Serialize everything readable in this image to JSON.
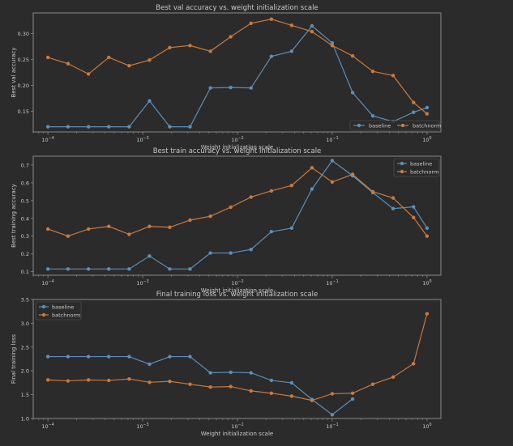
{
  "figure": {
    "background": "#2b2b2b",
    "text_color": "#c8c8c8",
    "axis_color": "#8a8a8a"
  },
  "chart_data": [
    {
      "type": "line",
      "title": "Best val accuracy vs. weight initialization scale",
      "xlabel": "Weight initialization scale",
      "ylabel": "Best val accuracy",
      "xscale": "log",
      "xlim": [
        7e-05,
        1.4
      ],
      "ylim": [
        0.11,
        0.34
      ],
      "yticks": [
        0.15,
        0.2,
        0.25,
        0.3
      ],
      "ytick_labels": [
        "0.15",
        "0.20",
        "0.25",
        "0.30"
      ],
      "xticks": [
        0.0001,
        0.001,
        0.01,
        0.1,
        1
      ],
      "xtick_labels": [
        [
          "10",
          "−4"
        ],
        [
          "10",
          "−3"
        ],
        [
          "10",
          "−2"
        ],
        [
          "10",
          "−1"
        ],
        [
          "10",
          "0"
        ]
      ],
      "legend_position": "bottom-right",
      "x": [
        0.0001,
        0.000163,
        0.000268,
        0.000439,
        0.00072,
        0.00118,
        0.00193,
        0.00316,
        0.00518,
        0.00848,
        0.0139,
        0.0228,
        0.0373,
        0.0611,
        0.1,
        0.164,
        0.268,
        0.439,
        0.72,
        1.0
      ],
      "series": [
        {
          "name": "baseline",
          "color": "#5b8fb9",
          "values": [
            0.12,
            0.12,
            0.12,
            0.12,
            0.12,
            0.17,
            0.12,
            0.12,
            0.195,
            0.196,
            0.195,
            0.256,
            0.266,
            0.315,
            0.282,
            0.186,
            0.141,
            0.13,
            0.148,
            0.157
          ]
        },
        {
          "name": "batchnorm",
          "color": "#c87a3d",
          "values": [
            0.254,
            0.242,
            0.222,
            0.254,
            0.238,
            0.249,
            0.273,
            0.277,
            0.266,
            0.294,
            0.32,
            0.328,
            0.316,
            0.304,
            0.277,
            0.257,
            0.227,
            0.219,
            0.167,
            0.145
          ]
        }
      ]
    },
    {
      "type": "line",
      "title": "Best train accuracy vs. weight initialization scale",
      "xlabel": "Weight initialization scale",
      "ylabel": "Best training accuracy",
      "xscale": "log",
      "xlim": [
        7e-05,
        1.4
      ],
      "ylim": [
        0.08,
        0.75
      ],
      "yticks": [
        0.1,
        0.2,
        0.3,
        0.4,
        0.5,
        0.6,
        0.7
      ],
      "ytick_labels": [
        "0.1",
        "0.2",
        "0.3",
        "0.4",
        "0.5",
        "0.6",
        "0.7"
      ],
      "xticks": [
        0.0001,
        0.001,
        0.01,
        0.1,
        1
      ],
      "xtick_labels": [
        [
          "10",
          "−4"
        ],
        [
          "10",
          "−3"
        ],
        [
          "10",
          "−2"
        ],
        [
          "10",
          "−1"
        ],
        [
          "10",
          "0"
        ]
      ],
      "legend_position": "top-right",
      "x": [
        0.0001,
        0.000163,
        0.000268,
        0.000439,
        0.00072,
        0.00118,
        0.00193,
        0.00316,
        0.00518,
        0.00848,
        0.0139,
        0.0228,
        0.0373,
        0.0611,
        0.1,
        0.164,
        0.268,
        0.439,
        0.72,
        1.0
      ],
      "series": [
        {
          "name": "baseline",
          "color": "#5b8fb9",
          "values": [
            0.115,
            0.115,
            0.115,
            0.115,
            0.115,
            0.188,
            0.115,
            0.115,
            0.205,
            0.205,
            0.225,
            0.325,
            0.345,
            0.565,
            0.725,
            0.64,
            0.545,
            0.455,
            0.465,
            0.345
          ]
        },
        {
          "name": "batchnorm",
          "color": "#c87a3d",
          "values": [
            0.34,
            0.3,
            0.34,
            0.355,
            0.31,
            0.355,
            0.35,
            0.39,
            0.412,
            0.463,
            0.52,
            0.555,
            0.585,
            0.685,
            0.605,
            0.648,
            0.55,
            0.515,
            0.405,
            0.3
          ]
        }
      ]
    },
    {
      "type": "line",
      "title": "Final training loss vs. weight initialization scale",
      "xlabel": "Weight initialization scale",
      "ylabel": "Final training loss",
      "xscale": "log",
      "xlim": [
        7e-05,
        1.4
      ],
      "ylim": [
        1.0,
        3.5
      ],
      "yticks": [
        1.0,
        1.5,
        2.0,
        2.5,
        3.0,
        3.5
      ],
      "ytick_labels": [
        "1.0",
        "1.5",
        "2.0",
        "2.5",
        "3.0",
        "3.5"
      ],
      "xticks": [
        0.0001,
        0.001,
        0.01,
        0.1,
        1
      ],
      "xtick_labels": [
        [
          "10",
          "−4"
        ],
        [
          "10",
          "−3"
        ],
        [
          "10",
          "−2"
        ],
        [
          "10",
          "−1"
        ],
        [
          "10",
          "0"
        ]
      ],
      "legend_position": "top-left",
      "x": [
        0.0001,
        0.000163,
        0.000268,
        0.000439,
        0.00072,
        0.00118,
        0.00193,
        0.00316,
        0.00518,
        0.00848,
        0.0139,
        0.0228,
        0.0373,
        0.0611,
        0.1,
        0.164,
        0.268,
        0.439,
        0.72,
        1.0
      ],
      "series": [
        {
          "name": "baseline",
          "color": "#5b8fb9",
          "values": [
            2.3,
            2.3,
            2.3,
            2.3,
            2.3,
            2.14,
            2.3,
            2.3,
            1.96,
            1.97,
            1.96,
            1.8,
            1.75,
            1.4,
            1.08,
            1.41,
            null,
            null,
            null,
            null
          ]
        },
        {
          "name": "batchnorm",
          "color": "#c87a3d",
          "values": [
            1.81,
            1.79,
            1.81,
            1.8,
            1.83,
            1.76,
            1.78,
            1.72,
            1.66,
            1.67,
            1.58,
            1.53,
            1.47,
            1.38,
            1.52,
            1.53,
            1.72,
            1.87,
            2.15,
            3.2
          ]
        }
      ]
    }
  ]
}
